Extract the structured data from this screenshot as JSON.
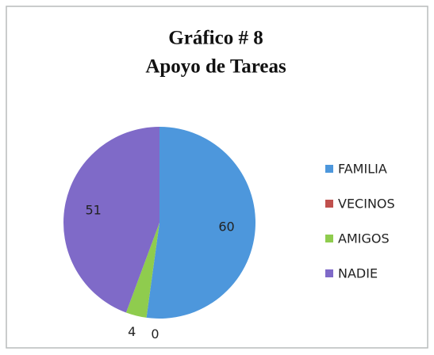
{
  "chart_data": {
    "type": "pie",
    "title": "Gráfico # 8",
    "subtitle": "Apoyo de Tareas",
    "categories": [
      "FAMILIA",
      "VECINOS",
      "AMIGOS",
      "NADIE"
    ],
    "values": [
      60,
      0,
      4,
      51
    ],
    "colors": [
      "#4d97dc",
      "#c0504d",
      "#8fcc4e",
      "#7f6ac8"
    ],
    "legend": "right"
  }
}
